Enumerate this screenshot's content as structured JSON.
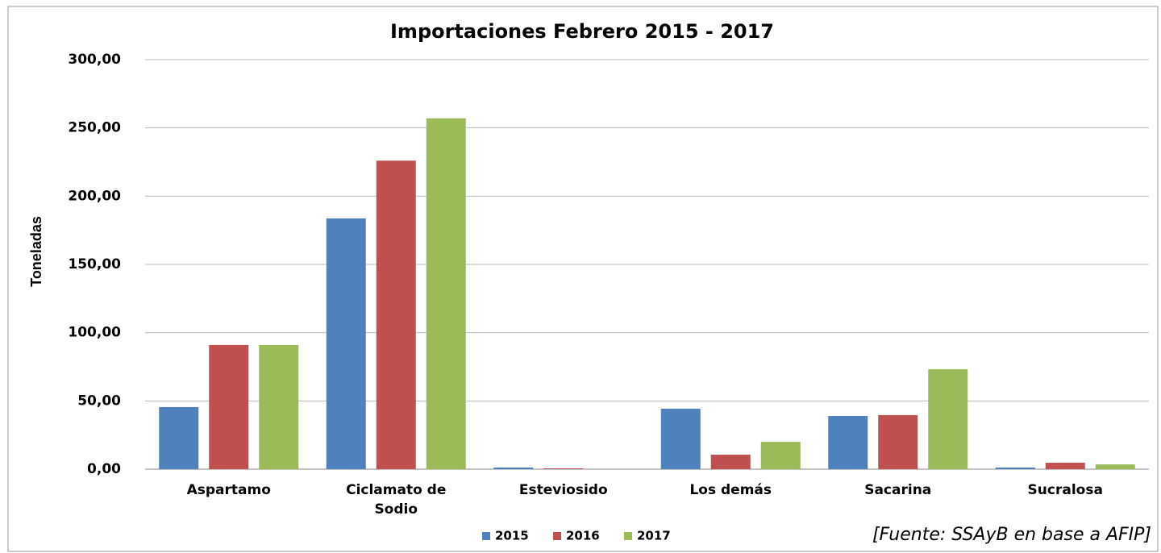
{
  "chart_data": {
    "type": "bar",
    "title": "Importaciones Febrero 2015 - 2017",
    "y_label": "Toneladas",
    "source": "[Fuente: SSAyB en base a AFIP]",
    "categories": [
      "Aspartamo",
      "Ciclamato de Sodio",
      "Esteviosido",
      "Los demás",
      "Sacarina",
      "Sucralosa"
    ],
    "series": [
      {
        "name": "2015",
        "color": "#4f81bd",
        "values": [
          45.5,
          183.7,
          1.2,
          44.3,
          39,
          1.2
        ]
      },
      {
        "name": "2016",
        "color": "#c0504d",
        "values": [
          91,
          226,
          0.6,
          10.6,
          39.6,
          4.7
        ]
      },
      {
        "name": "2017",
        "color": "#9bbb59",
        "values": [
          91,
          257,
          0,
          20,
          73.2,
          3.5
        ]
      }
    ],
    "ylim": [
      0,
      300
    ],
    "yticks": [
      {
        "value": 0,
        "label": "0,00"
      },
      {
        "value": 50,
        "label": "50,00"
      },
      {
        "value": 100,
        "label": "100,00"
      },
      {
        "value": 150,
        "label": "150,00"
      },
      {
        "value": 200,
        "label": "200,00"
      },
      {
        "value": 250,
        "label": "250,00"
      },
      {
        "value": 300,
        "label": "300,00"
      }
    ],
    "grid": true,
    "legend": "bottom"
  }
}
